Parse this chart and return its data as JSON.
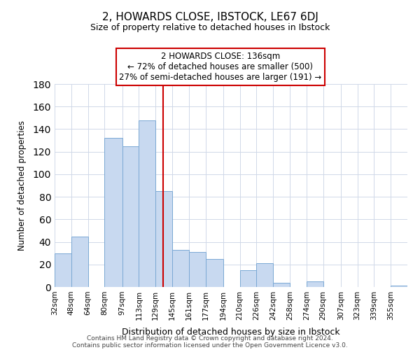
{
  "title": "2, HOWARDS CLOSE, IBSTOCK, LE67 6DJ",
  "subtitle": "Size of property relative to detached houses in Ibstock",
  "xlabel": "Distribution of detached houses by size in Ibstock",
  "ylabel": "Number of detached properties",
  "bar_labels": [
    "32sqm",
    "48sqm",
    "64sqm",
    "80sqm",
    "97sqm",
    "113sqm",
    "129sqm",
    "145sqm",
    "161sqm",
    "177sqm",
    "194sqm",
    "210sqm",
    "226sqm",
    "242sqm",
    "258sqm",
    "274sqm",
    "290sqm",
    "307sqm",
    "323sqm",
    "339sqm",
    "355sqm"
  ],
  "bar_values": [
    30,
    45,
    0,
    132,
    125,
    148,
    85,
    33,
    31,
    25,
    0,
    15,
    21,
    4,
    0,
    5,
    0,
    0,
    0,
    0,
    1
  ],
  "bar_color": "#c8d9f0",
  "bar_edge_color": "#7aa8d4",
  "annotation_line1": "2 HOWARDS CLOSE: 136sqm",
  "annotation_line2": "← 72% of detached houses are smaller (500)",
  "annotation_line3": "27% of semi-detached houses are larger (191) →",
  "vline_x": 136,
  "vline_color": "#cc0000",
  "annotation_box_edge": "#cc0000",
  "ylim": [
    0,
    180
  ],
  "footnote1": "Contains HM Land Registry data © Crown copyright and database right 2024.",
  "footnote2": "Contains public sector information licensed under the Open Government Licence v3.0.",
  "bin_edges": [
    32,
    48,
    64,
    80,
    97,
    113,
    129,
    145,
    161,
    177,
    194,
    210,
    226,
    242,
    258,
    274,
    290,
    307,
    323,
    339,
    355,
    371
  ]
}
